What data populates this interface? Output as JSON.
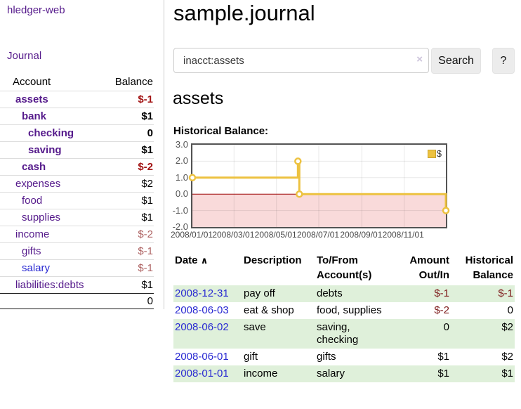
{
  "app": {
    "title": "hledger-web"
  },
  "sidebar": {
    "journal_label": "Journal",
    "accounts_table": {
      "headers": {
        "account": "Account",
        "balance": "Balance"
      },
      "rows": [
        {
          "name": "assets",
          "depth": 1,
          "bold": true,
          "link_color": "purple",
          "balance": "$-1",
          "balance_style": "bal-negbold"
        },
        {
          "name": "bank",
          "depth": 2,
          "bold": true,
          "link_color": "purple",
          "balance": "$1",
          "balance_style": "bal-bold"
        },
        {
          "name": "checking",
          "depth": 3,
          "bold": true,
          "link_color": "purple",
          "balance": "0",
          "balance_style": "bal-bold"
        },
        {
          "name": "saving",
          "depth": 3,
          "bold": true,
          "link_color": "purple",
          "balance": "$1",
          "balance_style": "bal-bold"
        },
        {
          "name": "cash",
          "depth": 2,
          "bold": true,
          "link_color": "purple",
          "balance": "$-2",
          "balance_style": "bal-negbold"
        },
        {
          "name": "expenses",
          "depth": 1,
          "bold": false,
          "link_color": "purple",
          "balance": "$2",
          "balance_style": "bal-plain"
        },
        {
          "name": "food",
          "depth": 2,
          "bold": false,
          "link_color": "purple",
          "balance": "$1",
          "balance_style": "bal-plain"
        },
        {
          "name": "supplies",
          "depth": 2,
          "bold": false,
          "link_color": "purple",
          "balance": "$1",
          "balance_style": "bal-plain"
        },
        {
          "name": "income",
          "depth": 1,
          "bold": false,
          "link_color": "purple",
          "balance": "$-2",
          "balance_style": "bal-negmuted"
        },
        {
          "name": "gifts",
          "depth": 2,
          "bold": false,
          "link_color": "purple",
          "balance": "$-1",
          "balance_style": "bal-negmuted"
        },
        {
          "name": "salary",
          "depth": 2,
          "bold": false,
          "link_color": "blue",
          "balance": "$-1",
          "balance_style": "bal-negmuted"
        },
        {
          "name": "liabilities:debts",
          "depth": 1,
          "bold": false,
          "link_color": "purple",
          "balance": "$1",
          "balance_style": "bal-plain"
        }
      ],
      "total": "0"
    }
  },
  "header": {
    "title": "sample.journal"
  },
  "search": {
    "value": "inacct:assets",
    "clear_icon": "×",
    "button_label": "Search",
    "help_label": "?"
  },
  "account_page": {
    "heading": "assets",
    "chart_label": "Historical Balance:"
  },
  "chart_data": {
    "type": "line",
    "title": "Historical Balance:",
    "series": [
      {
        "name": "$",
        "color": "#edc240",
        "step": true,
        "points": [
          {
            "date": "2008-01-01",
            "value": 1
          },
          {
            "date": "2008-06-01",
            "value": 2
          },
          {
            "date": "2008-06-03",
            "value": 0
          },
          {
            "date": "2008-12-31",
            "value": -1
          }
        ]
      }
    ],
    "x_range": [
      "2008-01-01",
      "2008-12-31"
    ],
    "y_range": [
      -2,
      3
    ],
    "x_ticks": [
      "2008/01/01",
      "2008/03/01",
      "2008/05/01",
      "2008/07/01",
      "2008/09/01",
      "2008/11/01"
    ],
    "y_ticks": [
      3.0,
      2.0,
      1.0,
      0.0,
      -1.0,
      -2.0
    ],
    "grid": true,
    "legend_position": "top-right",
    "legend": [
      "$"
    ],
    "zero_line_color": "#9a0000",
    "negative_region_color": "#f9dada",
    "border_color": "#545454"
  },
  "register": {
    "headers": {
      "date": "Date",
      "description": "Description",
      "accounts": "To/From Account(s)",
      "amount": "Amount Out/In",
      "balance": "Historical Balance"
    },
    "sort_icon": "∧",
    "rows": [
      {
        "date": "2008-12-31",
        "description": "pay off",
        "accounts": "debts",
        "amount": "$-1",
        "amount_neg": true,
        "balance": "$-1",
        "balance_neg": true,
        "striped": true
      },
      {
        "date": "2008-06-03",
        "description": "eat & shop",
        "accounts": "food, supplies",
        "amount": "$-2",
        "amount_neg": true,
        "balance": "0",
        "balance_neg": false,
        "striped": false
      },
      {
        "date": "2008-06-02",
        "description": "save",
        "accounts": "saving, checking",
        "amount": "0",
        "amount_neg": false,
        "balance": "$2",
        "balance_neg": false,
        "striped": true
      },
      {
        "date": "2008-06-01",
        "description": "gift",
        "accounts": "gifts",
        "amount": "$1",
        "amount_neg": false,
        "balance": "$2",
        "balance_neg": false,
        "striped": false
      },
      {
        "date": "2008-01-01",
        "description": "income",
        "accounts": "salary",
        "amount": "$1",
        "amount_neg": false,
        "balance": "$1",
        "balance_neg": false,
        "striped": true
      }
    ]
  },
  "colors": {
    "link_purple": "#551a8b",
    "link_blue": "#2a2ad2",
    "negative_bold": "#a31515",
    "negative_muted": "#ae6363",
    "negative_table": "#7d1a1a",
    "row_stripe_green": "#dff0da",
    "series_gold": "#edc240",
    "chart_border": "#545454",
    "zero_line": "#9a0000",
    "negative_region": "#f9dada"
  }
}
